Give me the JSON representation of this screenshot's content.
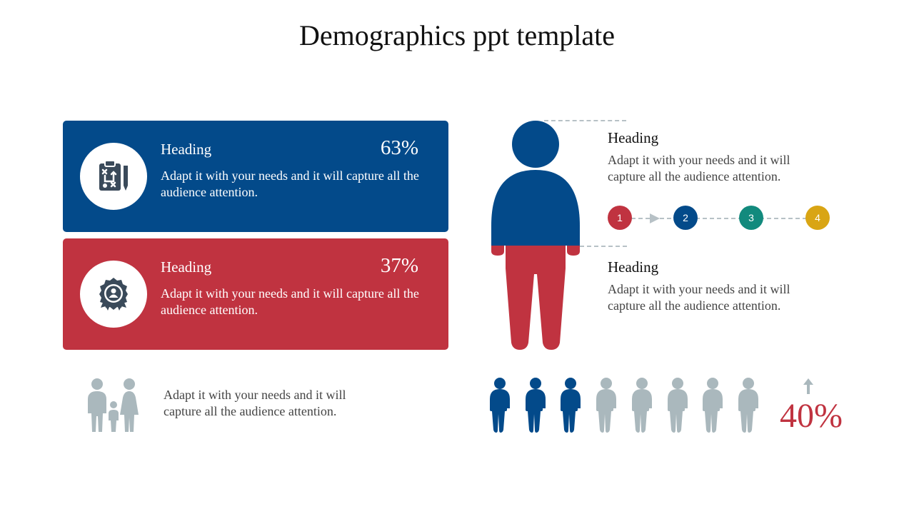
{
  "page": {
    "title": "Demographics ppt template"
  },
  "cards": [
    {
      "heading": "Heading",
      "percent": "63%",
      "text": "Adapt it with your needs and it will capture all the audience attention.",
      "icon": "strategy-clipboard-icon",
      "color": "#034a8a"
    },
    {
      "heading": "Heading",
      "percent": "37%",
      "text": "Adapt it with your needs and it will capture all the audience attention.",
      "icon": "award-badge-icon",
      "color": "#c03340"
    }
  ],
  "figure": {
    "icon": "person-silhouette-icon",
    "top_color": "#034a8a",
    "bottom_color": "#c03340"
  },
  "right": [
    {
      "heading": "Heading",
      "text": "Adapt it with your needs and it will capture all the audience attention."
    },
    {
      "heading": "Heading",
      "text": "Adapt it with your needs and it will capture all the audience attention."
    }
  ],
  "steps": [
    {
      "label": "1",
      "color": "#c03340"
    },
    {
      "label": "2",
      "color": "#034a8a"
    },
    {
      "label": "3",
      "color": "#128a7d"
    },
    {
      "label": "4",
      "color": "#d9a514"
    }
  ],
  "family": {
    "icon": "family-icon",
    "text": "Adapt it with your needs and it will capture all the audience attention."
  },
  "people_row": {
    "highlighted": 3,
    "total": 8,
    "highlight_color": "#034a8a",
    "base_color": "#aab8bd"
  },
  "stat": {
    "value": "40%",
    "icon": "arrow-up-icon"
  }
}
